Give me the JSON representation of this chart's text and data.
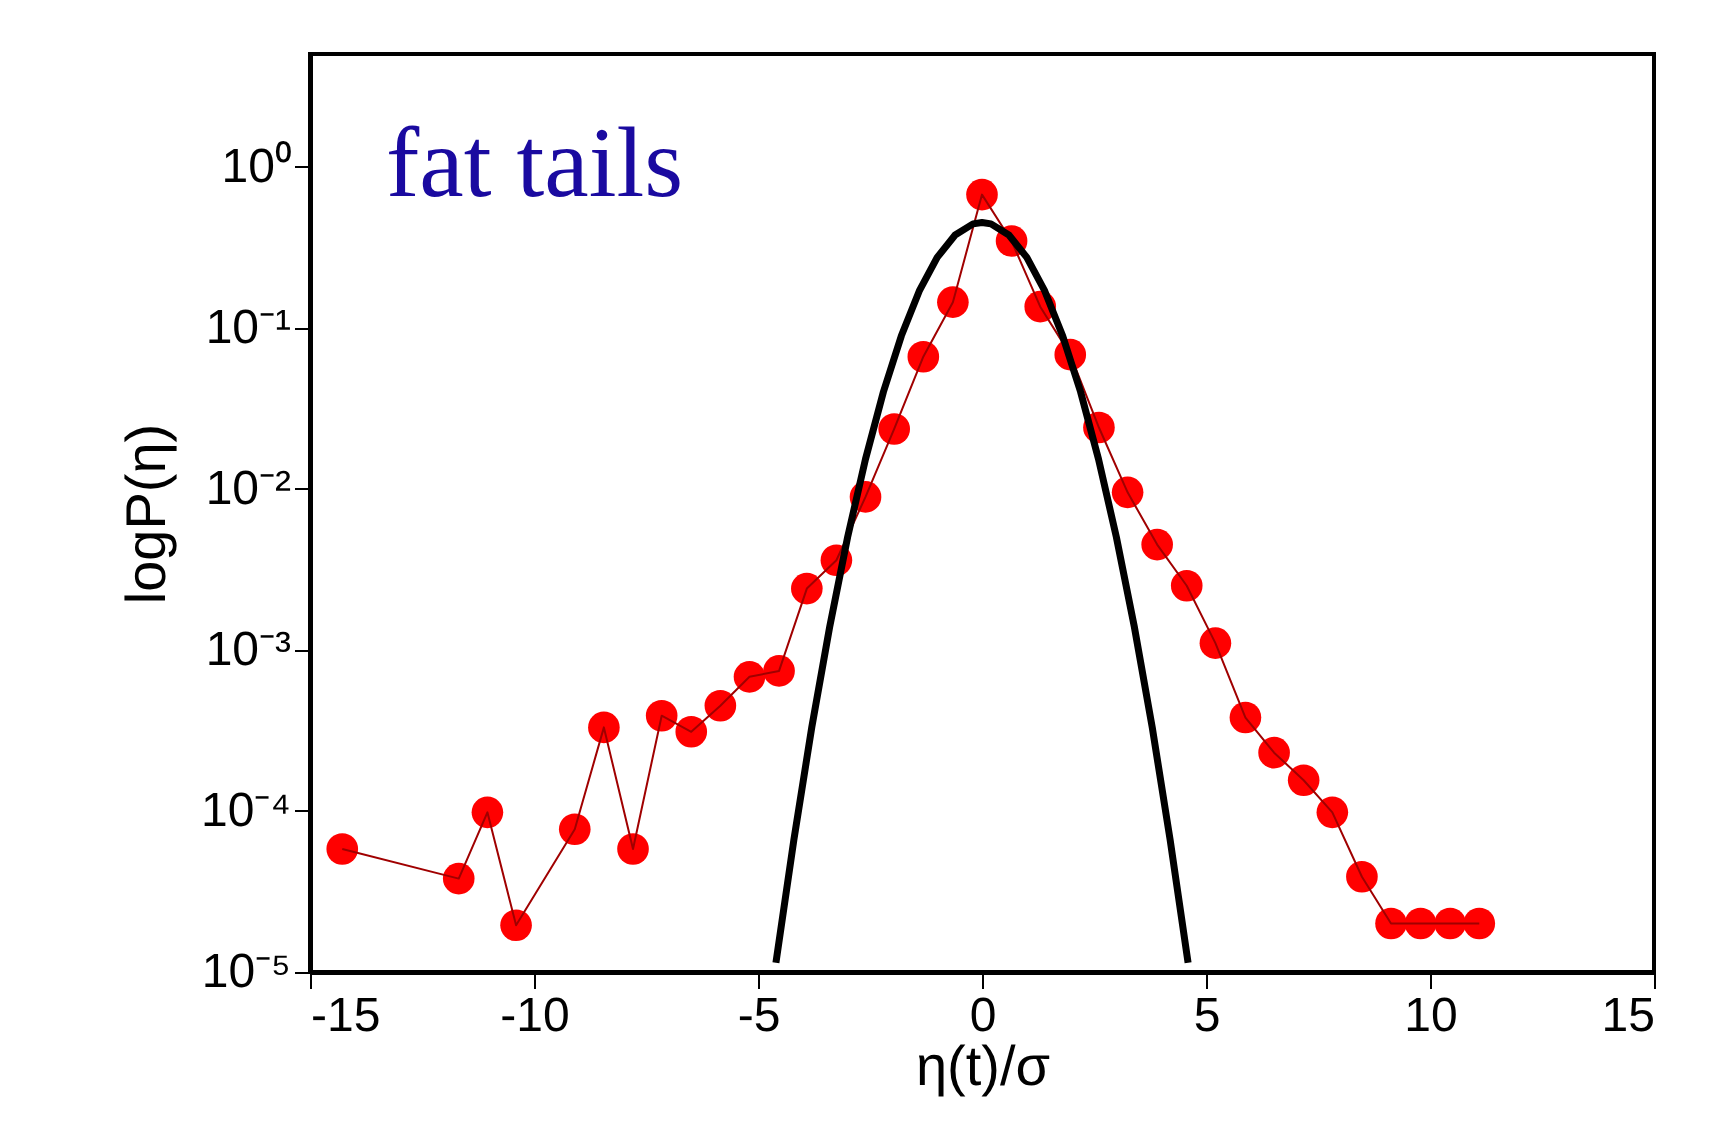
{
  "chart_data": {
    "type": "line",
    "xlabel": "η(t)/σ",
    "ylabel": "logP(η)",
    "log": "y",
    "annotations": [
      "fat tails"
    ],
    "xlim": [
      -15,
      15
    ],
    "xticks": [
      -15,
      -10,
      -5,
      0,
      5,
      10,
      15
    ],
    "ylim": [
      1e-05,
      5
    ],
    "yticks": [
      {
        "value": 1e-05,
        "label": "10⁻⁵"
      },
      {
        "value": 0.0001,
        "label": "10⁻⁴"
      },
      {
        "value": 0.001,
        "label": "10⁻³"
      },
      {
        "value": 0.01,
        "label": "10⁻²"
      },
      {
        "value": 0.1,
        "label": "10⁻¹"
      },
      {
        "value": 1,
        "label": "10⁰"
      }
    ],
    "grid": false,
    "legend": false,
    "series": [
      {
        "type": "line",
        "color": "#ff0000",
        "marker": "circle",
        "x": [
          -14.28,
          -11.68,
          -11.04,
          -10.4,
          -9.09,
          -8.44,
          -7.79,
          -7.15,
          -6.49,
          -5.84,
          -5.19,
          -4.53,
          -3.91,
          -3.25,
          -2.6,
          -1.96,
          -1.31,
          -0.65,
          0,
          0.66,
          1.3,
          1.97,
          2.61,
          3.25,
          3.91,
          4.57,
          5.21,
          5.88,
          6.52,
          7.18,
          7.82,
          8.48,
          9.13,
          9.79,
          10.45,
          11.1
        ],
        "values": [
          5.8e-05,
          3.8e-05,
          9.8e-05,
          1.95e-05,
          7.7e-05,
          0.00033,
          5.8e-05,
          0.00039,
          0.00031,
          0.00045,
          0.00068,
          0.00074,
          0.0024,
          0.0036,
          0.0089,
          0.0235,
          0.066,
          0.144,
          0.67,
          0.345,
          0.135,
          0.068,
          0.024,
          0.0095,
          0.0045,
          0.0025,
          0.0011,
          0.00038,
          0.00023,
          0.000155,
          9.8e-05,
          3.9e-05,
          2e-05,
          2e-05,
          2e-05,
          2e-05
        ]
      },
      {
        "type": "line",
        "color": "#000000",
        "marker": "none",
        "x": [
          -4.6,
          -4.2,
          -3.8,
          -3.4,
          -3.0,
          -2.6,
          -2.2,
          -1.8,
          -1.4,
          -1.0,
          -0.6,
          -0.2,
          0,
          0.2,
          0.6,
          1.0,
          1.4,
          1.8,
          2.2,
          2.6,
          3.0,
          3.4,
          3.8,
          4.2,
          4.6
        ],
        "values": [
          1.14e-05,
          6.6e-05,
          0.00033,
          0.00139,
          0.005,
          0.0153,
          0.04,
          0.089,
          0.169,
          0.273,
          0.376,
          0.441,
          0.45,
          0.441,
          0.376,
          0.273,
          0.169,
          0.089,
          0.04,
          0.0153,
          0.005,
          0.00139,
          0.00033,
          6.6e-05,
          1.14e-05
        ]
      }
    ]
  }
}
